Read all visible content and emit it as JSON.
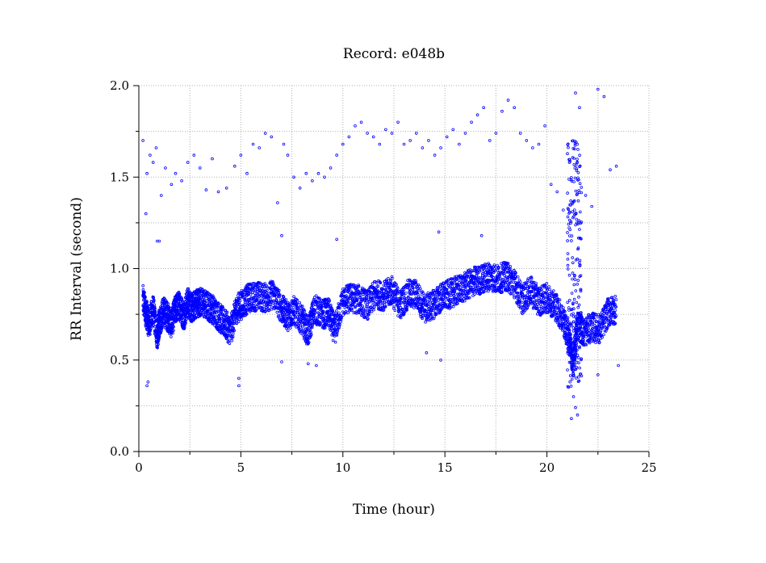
{
  "chart_data": {
    "type": "scatter",
    "title": "Record:  e048b",
    "xlabel": "Time (hour)",
    "ylabel": "RR Interval (second)",
    "xlim": [
      0,
      25
    ],
    "ylim": [
      0,
      2.0
    ],
    "xticks": [
      0,
      5,
      10,
      15,
      20,
      25
    ],
    "xtick_labels": [
      "0",
      "5",
      "10",
      "15",
      "20",
      "25"
    ],
    "yticks": [
      0.0,
      0.5,
      1.0,
      1.5,
      2.0
    ],
    "ytick_labels": [
      "0.0",
      "0.5",
      "1.0",
      "1.5",
      "2.0"
    ],
    "grid": true,
    "marker_color": "#0000ff",
    "marker": "open-circle",
    "series": [
      {
        "values_main_band": [
          [
            0.2,
            0.83
          ],
          [
            0.35,
            0.76
          ],
          [
            0.5,
            0.7
          ],
          [
            0.7,
            0.78
          ],
          [
            0.9,
            0.63
          ],
          [
            1.0,
            0.7
          ],
          [
            1.2,
            0.77
          ],
          [
            1.4,
            0.74
          ],
          [
            1.6,
            0.7
          ],
          [
            1.8,
            0.78
          ],
          [
            2.0,
            0.8
          ],
          [
            2.2,
            0.74
          ],
          [
            2.4,
            0.82
          ],
          [
            2.6,
            0.78
          ],
          [
            2.8,
            0.81
          ],
          [
            3.0,
            0.82
          ],
          [
            3.3,
            0.8
          ],
          [
            3.6,
            0.78
          ],
          [
            3.9,
            0.74
          ],
          [
            4.2,
            0.7
          ],
          [
            4.5,
            0.66
          ],
          [
            4.8,
            0.78
          ],
          [
            5.1,
            0.81
          ],
          [
            5.4,
            0.84
          ],
          [
            5.8,
            0.85
          ],
          [
            6.2,
            0.84
          ],
          [
            6.6,
            0.86
          ],
          [
            7.0,
            0.78
          ],
          [
            7.3,
            0.74
          ],
          [
            7.6,
            0.77
          ],
          [
            8.0,
            0.72
          ],
          [
            8.3,
            0.65
          ],
          [
            8.6,
            0.78
          ],
          [
            9.0,
            0.75
          ],
          [
            9.3,
            0.76
          ],
          [
            9.6,
            0.66
          ],
          [
            10.0,
            0.82
          ],
          [
            10.4,
            0.84
          ],
          [
            10.8,
            0.83
          ],
          [
            11.2,
            0.8
          ],
          [
            11.6,
            0.86
          ],
          [
            12.0,
            0.85
          ],
          [
            12.4,
            0.88
          ],
          [
            12.8,
            0.8
          ],
          [
            13.2,
            0.86
          ],
          [
            13.6,
            0.86
          ],
          [
            14.0,
            0.78
          ],
          [
            14.4,
            0.8
          ],
          [
            14.8,
            0.84
          ],
          [
            15.2,
            0.86
          ],
          [
            15.6,
            0.88
          ],
          [
            16.0,
            0.9
          ],
          [
            16.4,
            0.93
          ],
          [
            16.8,
            0.94
          ],
          [
            17.2,
            0.96
          ],
          [
            17.6,
            0.94
          ],
          [
            18.0,
            0.96
          ],
          [
            18.4,
            0.92
          ],
          [
            18.8,
            0.83
          ],
          [
            19.2,
            0.88
          ],
          [
            19.6,
            0.82
          ],
          [
            20.0,
            0.84
          ],
          [
            20.4,
            0.8
          ],
          [
            20.8,
            0.72
          ],
          [
            21.1,
            0.6
          ],
          [
            21.3,
            0.48
          ],
          [
            21.5,
            0.7
          ],
          [
            21.8,
            0.65
          ],
          [
            22.2,
            0.68
          ],
          [
            22.6,
            0.67
          ],
          [
            23.0,
            0.76
          ],
          [
            23.4,
            0.78
          ]
        ],
        "values_outliers": [
          [
            0.2,
            1.7
          ],
          [
            0.35,
            1.3
          ],
          [
            0.4,
            1.52
          ],
          [
            0.55,
            1.62
          ],
          [
            0.7,
            1.58
          ],
          [
            0.85,
            1.66
          ],
          [
            1.0,
            1.15
          ],
          [
            1.1,
            1.4
          ],
          [
            1.3,
            1.55
          ],
          [
            1.6,
            1.46
          ],
          [
            1.8,
            1.52
          ],
          [
            2.1,
            1.48
          ],
          [
            2.4,
            1.58
          ],
          [
            2.7,
            1.62
          ],
          [
            3.0,
            1.55
          ],
          [
            3.3,
            1.43
          ],
          [
            3.6,
            1.6
          ],
          [
            3.9,
            1.42
          ],
          [
            4.3,
            1.44
          ],
          [
            4.7,
            1.56
          ],
          [
            5.0,
            1.62
          ],
          [
            5.3,
            1.52
          ],
          [
            5.6,
            1.68
          ],
          [
            5.9,
            1.66
          ],
          [
            6.2,
            1.74
          ],
          [
            6.5,
            1.72
          ],
          [
            6.8,
            1.36
          ],
          [
            7.1,
            1.68
          ],
          [
            7.3,
            1.62
          ],
          [
            7.6,
            1.5
          ],
          [
            7.9,
            1.44
          ],
          [
            8.2,
            1.52
          ],
          [
            8.5,
            1.48
          ],
          [
            8.8,
            1.52
          ],
          [
            9.1,
            1.5
          ],
          [
            9.4,
            1.55
          ],
          [
            9.7,
            1.62
          ],
          [
            10.0,
            1.68
          ],
          [
            10.3,
            1.72
          ],
          [
            10.6,
            1.78
          ],
          [
            10.9,
            1.8
          ],
          [
            11.2,
            1.74
          ],
          [
            11.5,
            1.72
          ],
          [
            11.8,
            1.68
          ],
          [
            12.1,
            1.76
          ],
          [
            12.4,
            1.74
          ],
          [
            12.7,
            1.8
          ],
          [
            13.0,
            1.68
          ],
          [
            13.3,
            1.7
          ],
          [
            13.6,
            1.74
          ],
          [
            13.9,
            1.66
          ],
          [
            14.2,
            1.7
          ],
          [
            14.5,
            1.62
          ],
          [
            14.8,
            1.66
          ],
          [
            15.1,
            1.72
          ],
          [
            15.4,
            1.76
          ],
          [
            15.7,
            1.68
          ],
          [
            16.0,
            1.74
          ],
          [
            16.3,
            1.8
          ],
          [
            16.6,
            1.84
          ],
          [
            16.9,
            1.88
          ],
          [
            17.2,
            1.7
          ],
          [
            17.5,
            1.74
          ],
          [
            17.8,
            1.86
          ],
          [
            18.1,
            1.92
          ],
          [
            18.4,
            1.88
          ],
          [
            18.7,
            1.74
          ],
          [
            19.0,
            1.7
          ],
          [
            19.3,
            1.66
          ],
          [
            19.6,
            1.68
          ],
          [
            19.9,
            1.78
          ],
          [
            20.2,
            1.46
          ],
          [
            20.5,
            1.42
          ],
          [
            20.8,
            1.32
          ],
          [
            21.1,
            1.58
          ],
          [
            21.4,
            1.96
          ],
          [
            21.6,
            1.88
          ],
          [
            21.9,
            1.4
          ],
          [
            22.2,
            1.34
          ],
          [
            22.5,
            1.98
          ],
          [
            22.8,
            1.94
          ],
          [
            23.1,
            1.54
          ],
          [
            23.4,
            1.56
          ],
          [
            0.4,
            0.36
          ],
          [
            0.45,
            0.38
          ],
          [
            4.9,
            0.4
          ],
          [
            4.9,
            0.36
          ],
          [
            8.3,
            0.48
          ],
          [
            8.7,
            0.47
          ],
          [
            7.0,
            0.49
          ],
          [
            14.8,
            0.5
          ],
          [
            14.1,
            0.54
          ],
          [
            21.3,
            0.3
          ],
          [
            21.4,
            0.24
          ],
          [
            21.5,
            0.2
          ],
          [
            21.2,
            0.18
          ],
          [
            22.5,
            0.42
          ],
          [
            23.5,
            0.47
          ],
          [
            16.8,
            1.18
          ],
          [
            14.7,
            1.2
          ],
          [
            9.7,
            1.16
          ],
          [
            7.0,
            1.18
          ],
          [
            0.9,
            1.15
          ]
        ]
      }
    ]
  }
}
